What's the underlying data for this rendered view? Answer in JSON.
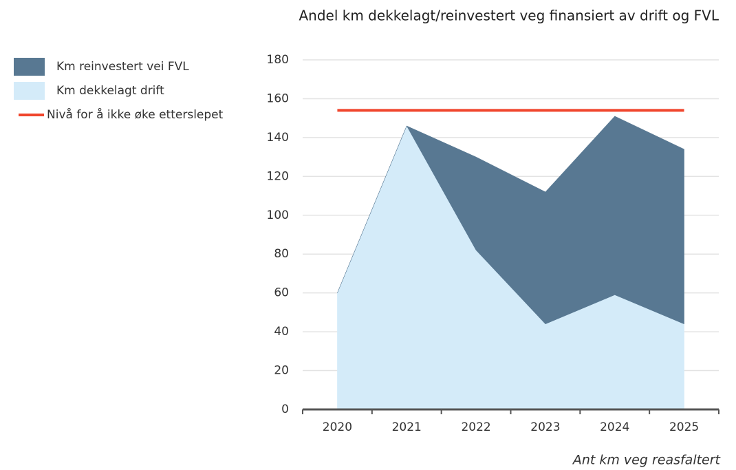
{
  "chart_data": {
    "type": "area",
    "stacked": true,
    "title": "Andel km dekkelagt/reinvestert veg finansiert av drift og FVL",
    "x_label": "Ant km veg reasfaltert",
    "categories": [
      "2020",
      "2021",
      "2022",
      "2023",
      "2024",
      "2025"
    ],
    "series": [
      {
        "name": "Km reinvestert vei FVL",
        "color": "#587892",
        "values": [
          0,
          0,
          48,
          68,
          92,
          90
        ]
      },
      {
        "name": "Km dekkelagt drift",
        "color": "#d4ebf9",
        "values": [
          60,
          146,
          82,
          44,
          59,
          44
        ]
      },
      {
        "name": "Nivå for å ikke øke etterslepet",
        "type": "line",
        "color": "#f0452c",
        "values": [
          154,
          154,
          154,
          154,
          154,
          154
        ]
      }
    ],
    "ylim": [
      0,
      180
    ],
    "yticks": [
      0,
      20,
      40,
      60,
      80,
      100,
      120,
      140,
      160,
      180
    ],
    "grid": true,
    "legend": "left"
  }
}
